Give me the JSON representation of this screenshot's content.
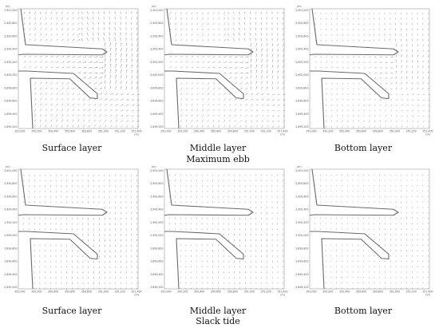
{
  "figure": {
    "rows": [
      {
        "title": "Maximum ebb",
        "phase": "ebb",
        "panels": [
          {
            "caption": "Surface layer",
            "layer": "surface"
          },
          {
            "caption": "Middle layer",
            "layer": "middle"
          },
          {
            "caption": "Bottom layer",
            "layer": "bottom"
          }
        ]
      },
      {
        "title": "Slack tide",
        "phase": "slack",
        "panels": [
          {
            "caption": "Surface layer",
            "layer": "surface"
          },
          {
            "caption": "Middle layer",
            "layer": "middle"
          },
          {
            "caption": "Bottom layer",
            "layer": "bottom"
          }
        ]
      }
    ],
    "axis": {
      "y_ticks": [
        "2,901,000",
        "2,900,800",
        "2,900,600",
        "2,900,400",
        "2,900,200",
        "2,900,000",
        "2,899,800",
        "2,899,600",
        "2,899,400",
        "2,899,200"
      ],
      "x_ticks": [
        "350,000",
        "350,200",
        "350,400",
        "350,600",
        "350,800",
        "351,000",
        "351,200",
        "351,400"
      ],
      "y_unit": "(m)",
      "x_unit": "(m)"
    },
    "colors": {
      "coastline": "#6a6a6a",
      "vectors": "#8e8e8e",
      "frame": "#9a9a9a"
    }
  }
}
